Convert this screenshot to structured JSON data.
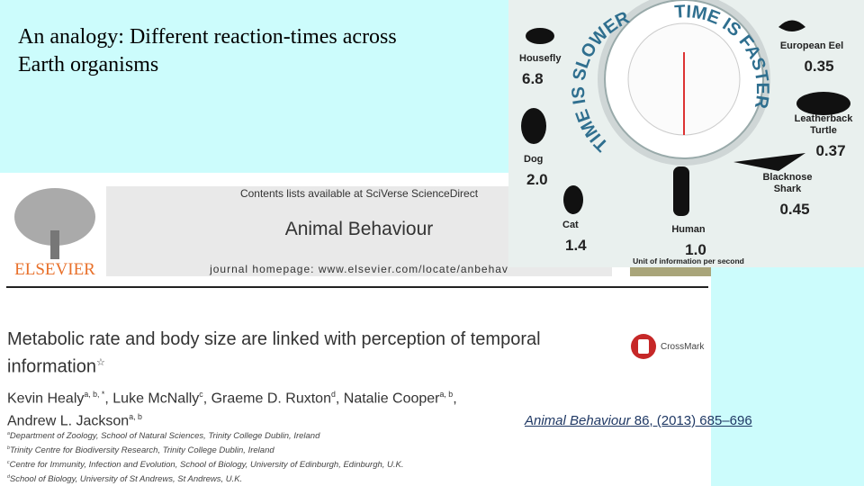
{
  "slide": {
    "title_lines": [
      "An analogy: Different reaction-times across",
      "Earth organisms"
    ]
  },
  "paper": {
    "publisher": "ELSEVIER",
    "contents": "Contents lists available at SciVerse ScienceDirect",
    "journal": "Animal Behaviour",
    "homepage": "journal homepage: www.elsevier.com/locate/anbehav",
    "title_lines": [
      "Metabolic rate and body size are linked with perception of temporal",
      "information"
    ],
    "title_mark": "☆",
    "crossmark": "CrossMark",
    "author_lines": [
      [
        {
          "name": "Kevin Healy",
          "sup": "a, b, *"
        },
        {
          "name": ", Luke McNally",
          "sup": "c"
        },
        {
          "name": ", Graeme D. Ruxton",
          "sup": "d"
        },
        {
          "name": ", Natalie Cooper",
          "sup": "a, b"
        },
        {
          "name": ","
        }
      ],
      [
        {
          "name": "Andrew L. Jackson",
          "sup": "a, b"
        }
      ]
    ],
    "affiliations": [
      {
        "sup": "a",
        "text": "Department of Zoology, School of Natural Sciences, Trinity College Dublin, Ireland"
      },
      {
        "sup": "b",
        "text": "Trinity Centre for Biodiversity Research, Trinity College Dublin, Ireland"
      },
      {
        "sup": "c",
        "text": "Centre for Immunity, Infection and Evolution, School of Biology, University of Edinburgh, Edinburgh, U.K."
      },
      {
        "sup": "d",
        "text": "School of Biology, University of St Andrews, St Andrews, U.K."
      }
    ]
  },
  "citation": {
    "journal": "Animal Behaviour",
    "details": " 86, (2013) 685–696"
  },
  "infographic": {
    "slower": "TIME IS SLOWER",
    "faster": "TIME IS FASTER",
    "unit": "Unit of information per second",
    "animals": [
      {
        "name_lines": [
          "Housefly"
        ],
        "value": "6.8"
      },
      {
        "name_lines": [
          "Dog"
        ],
        "value": "2.0"
      },
      {
        "name_lines": [
          "Cat"
        ],
        "value": "1.4"
      },
      {
        "name_lines": [
          "Human"
        ],
        "value": "1.0"
      },
      {
        "name_lines": [
          "Blacknose",
          "Shark"
        ],
        "value": "0.45"
      },
      {
        "name_lines": [
          "Leatherback",
          "Turtle"
        ],
        "value": "0.37"
      },
      {
        "name_lines": [
          "European Eel"
        ],
        "value": "0.35"
      }
    ]
  }
}
